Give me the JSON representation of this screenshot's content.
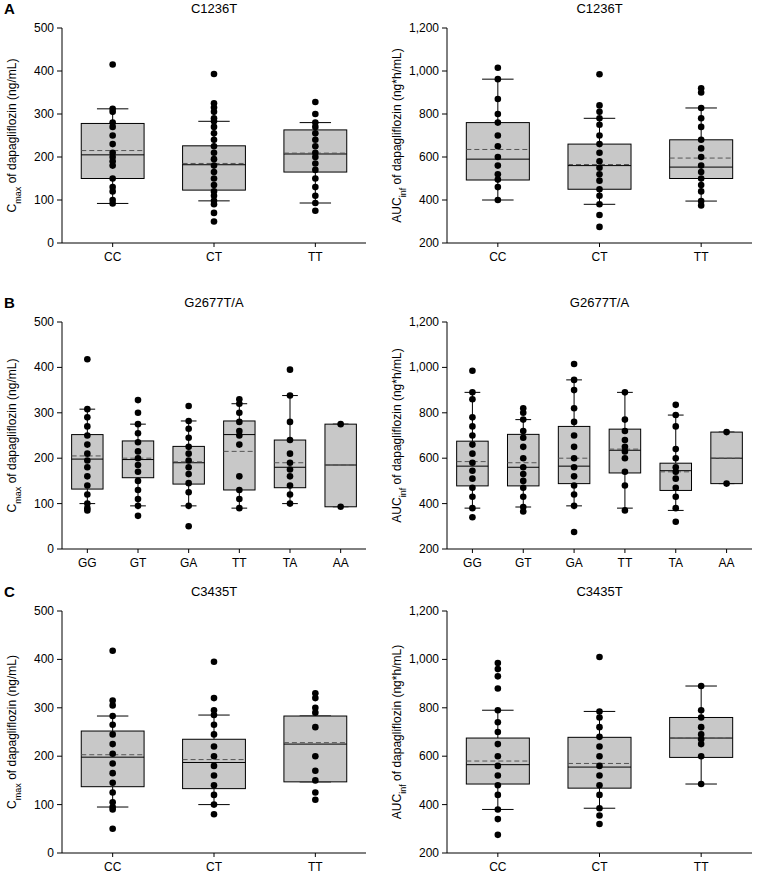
{
  "chart_data": [
    {
      "type": "box",
      "panel": "A",
      "title": "C1236T",
      "y_label": [
        "C",
        "max",
        " of dapagliflozin (ng/mL)"
      ],
      "color": "#c8c8c8",
      "categories": [
        "CC",
        "CT",
        "TT"
      ],
      "ylim": [
        0,
        500
      ],
      "yticks": [
        0,
        100,
        200,
        300,
        400,
        500
      ],
      "boxes": [
        {
          "q1": 150,
          "median": 205,
          "q3": 278,
          "mean": 215,
          "whisker_low": 92,
          "whisker_high": 312,
          "points": [
            415,
            312,
            305,
            280,
            270,
            250,
            230,
            210,
            200,
            190,
            180,
            150,
            130,
            120,
            100,
            92
          ]
        },
        {
          "q1": 123,
          "median": 182,
          "q3": 226,
          "mean": 185,
          "whisker_low": 98,
          "whisker_high": 283,
          "points": [
            393,
            325,
            315,
            305,
            290,
            283,
            270,
            255,
            240,
            225,
            210,
            195,
            180,
            165,
            150,
            135,
            120,
            110,
            98,
            90,
            70,
            50
          ]
        },
        {
          "q1": 165,
          "median": 207,
          "q3": 263,
          "mean": 209,
          "whisker_low": 93,
          "whisker_high": 280,
          "points": [
            328,
            300,
            280,
            270,
            255,
            240,
            225,
            210,
            200,
            185,
            170,
            150,
            130,
            110,
            93,
            75
          ]
        }
      ]
    },
    {
      "type": "box",
      "title": "C1236T",
      "y_label": [
        "AUC",
        "inf",
        " of dapagliflozin (ng*h/mL)"
      ],
      "color": "#c8c8c8",
      "categories": [
        "CC",
        "CT",
        "TT"
      ],
      "ylim": [
        200,
        1200
      ],
      "yticks": [
        200,
        400,
        600,
        800,
        {
          "value": 1000,
          "label": "1,000"
        },
        {
          "value": 1200,
          "label": "1,200"
        }
      ],
      "boxes": [
        {
          "q1": 493,
          "median": 590,
          "q3": 760,
          "mean": 635,
          "whisker_low": 400,
          "whisker_high": 962,
          "points": [
            1015,
            962,
            870,
            800,
            760,
            700,
            650,
            600,
            560,
            520,
            495,
            460,
            400
          ]
        },
        {
          "q1": 450,
          "median": 560,
          "q3": 660,
          "mean": 565,
          "whisker_low": 380,
          "whisker_high": 780,
          "points": [
            985,
            840,
            810,
            780,
            750,
            700,
            660,
            620,
            580,
            550,
            520,
            490,
            450,
            420,
            380,
            330,
            275
          ]
        },
        {
          "q1": 500,
          "median": 553,
          "q3": 680,
          "mean": 595,
          "whisker_low": 395,
          "whisker_high": 828,
          "points": [
            920,
            900,
            828,
            780,
            740,
            680,
            640,
            600,
            560,
            530,
            500,
            470,
            440,
            395,
            375
          ]
        }
      ]
    },
    {
      "type": "box",
      "panel": "B",
      "title": "G2677T/A",
      "y_label": [
        "C",
        "max",
        " of dapagliflozin (ng/mL)"
      ],
      "color": "#c8c8c8",
      "categories": [
        "GG",
        "GT",
        "GA",
        "TT",
        "TA",
        "AA"
      ],
      "ylim": [
        0,
        500
      ],
      "yticks": [
        0,
        100,
        200,
        300,
        400,
        500
      ],
      "boxes": [
        {
          "q1": 132,
          "median": 198,
          "q3": 252,
          "mean": 205,
          "whisker_low": 100,
          "whisker_high": 308,
          "points": [
            418,
            308,
            290,
            270,
            250,
            230,
            210,
            195,
            180,
            160,
            140,
            120,
            100,
            90,
            85
          ]
        },
        {
          "q1": 157,
          "median": 197,
          "q3": 238,
          "mean": 200,
          "whisker_low": 95,
          "whisker_high": 275,
          "points": [
            328,
            300,
            275,
            255,
            235,
            215,
            200,
            185,
            170,
            150,
            130,
            110,
            95,
            73
          ]
        },
        {
          "q1": 143,
          "median": 190,
          "q3": 226,
          "mean": 192,
          "whisker_low": 95,
          "whisker_high": 282,
          "points": [
            315,
            282,
            265,
            245,
            225,
            210,
            195,
            180,
            165,
            145,
            125,
            95,
            50
          ]
        },
        {
          "q1": 130,
          "median": 252,
          "q3": 282,
          "mean": 215,
          "whisker_low": 90,
          "whisker_high": 320,
          "points": [
            330,
            320,
            300,
            280,
            260,
            250,
            230,
            160,
            130,
            110,
            90
          ]
        },
        {
          "q1": 135,
          "median": 180,
          "q3": 240,
          "mean": 190,
          "whisker_low": 100,
          "whisker_high": 338,
          "points": [
            395,
            338,
            280,
            240,
            210,
            190,
            175,
            160,
            140,
            120,
            100
          ]
        },
        {
          "q1": 93,
          "median": 185,
          "q3": 275,
          "mean": 185,
          "whisker_low": 93,
          "whisker_high": 275,
          "points": [
            275,
            93
          ]
        }
      ]
    },
    {
      "type": "box",
      "title": "G2677T/A",
      "y_label": [
        "AUC",
        "inf",
        " of dapagliflozin (ng*h/mL)"
      ],
      "color": "#c8c8c8",
      "categories": [
        "GG",
        "GT",
        "GA",
        "TT",
        "TA",
        "AA"
      ],
      "ylim": [
        200,
        1200
      ],
      "yticks": [
        200,
        400,
        600,
        800,
        {
          "value": 1000,
          "label": "1,000"
        },
        {
          "value": 1200,
          "label": "1,200"
        }
      ],
      "boxes": [
        {
          "q1": 478,
          "median": 565,
          "q3": 675,
          "mean": 585,
          "whisker_low": 380,
          "whisker_high": 890,
          "points": [
            985,
            890,
            860,
            780,
            740,
            700,
            660,
            620,
            580,
            545,
            510,
            470,
            430,
            380,
            340
          ]
        },
        {
          "q1": 478,
          "median": 560,
          "q3": 705,
          "mean": 580,
          "whisker_low": 385,
          "whisker_high": 770,
          "points": [
            820,
            800,
            770,
            720,
            690,
            650,
            600,
            560,
            530,
            500,
            470,
            430,
            385,
            365
          ]
        },
        {
          "q1": 488,
          "median": 565,
          "q3": 740,
          "mean": 600,
          "whisker_low": 390,
          "whisker_high": 945,
          "points": [
            1015,
            945,
            900,
            820,
            760,
            700,
            650,
            600,
            560,
            520,
            480,
            440,
            390,
            275
          ]
        },
        {
          "q1": 535,
          "median": 635,
          "q3": 728,
          "mean": 640,
          "whisker_low": 380,
          "whisker_high": 890,
          "points": [
            890,
            770,
            720,
            680,
            650,
            630,
            600,
            540,
            480,
            370
          ]
        },
        {
          "q1": 458,
          "median": 545,
          "q3": 578,
          "mean": 540,
          "whisker_low": 370,
          "whisker_high": 790,
          "points": [
            835,
            790,
            740,
            640,
            600,
            560,
            540,
            510,
            470,
            430,
            380,
            320
          ]
        },
        {
          "q1": 488,
          "median": 600,
          "q3": 715,
          "mean": 600,
          "whisker_low": 488,
          "whisker_high": 715,
          "points": [
            715,
            488
          ]
        }
      ]
    },
    {
      "type": "box",
      "panel": "C",
      "title": "C3435T",
      "y_label": [
        "C",
        "max",
        " of dapagliflozin (ng/mL)"
      ],
      "color": "#c8c8c8",
      "categories": [
        "CC",
        "CT",
        "TT"
      ],
      "ylim": [
        0,
        500
      ],
      "yticks": [
        0,
        100,
        200,
        300,
        400,
        500
      ],
      "boxes": [
        {
          "q1": 137,
          "median": 198,
          "q3": 252,
          "mean": 203,
          "whisker_low": 95,
          "whisker_high": 283,
          "points": [
            418,
            315,
            305,
            283,
            265,
            245,
            225,
            205,
            185,
            165,
            145,
            125,
            105,
            95,
            90,
            50
          ]
        },
        {
          "q1": 133,
          "median": 187,
          "q3": 235,
          "mean": 193,
          "whisker_low": 100,
          "whisker_high": 285,
          "points": [
            395,
            320,
            295,
            285,
            265,
            245,
            220,
            200,
            180,
            160,
            140,
            120,
            100,
            80
          ]
        },
        {
          "q1": 147,
          "median": 225,
          "q3": 283,
          "mean": 228,
          "whisker_low": 147,
          "whisker_high": 283,
          "points": [
            330,
            320,
            300,
            290,
            260,
            200,
            170,
            150,
            125,
            110
          ]
        }
      ]
    },
    {
      "type": "box",
      "title": "C3435T",
      "y_label": [
        "AUC",
        "inf",
        " of dapagliflozin (ng*h/mL)"
      ],
      "color": "#c8c8c8",
      "categories": [
        "CC",
        "CT",
        "TT"
      ],
      "ylim": [
        200,
        1200
      ],
      "yticks": [
        200,
        400,
        600,
        800,
        {
          "value": 1000,
          "label": "1,000"
        },
        {
          "value": 1200,
          "label": "1,200"
        }
      ],
      "boxes": [
        {
          "q1": 485,
          "median": 565,
          "q3": 675,
          "mean": 580,
          "whisker_low": 380,
          "whisker_high": 790,
          "points": [
            985,
            960,
            930,
            880,
            790,
            740,
            700,
            650,
            600,
            560,
            520,
            480,
            440,
            380,
            340,
            275
          ]
        },
        {
          "q1": 468,
          "median": 555,
          "q3": 678,
          "mean": 570,
          "whisker_low": 385,
          "whisker_high": 785,
          "points": [
            1010,
            785,
            760,
            720,
            680,
            640,
            600,
            560,
            520,
            480,
            440,
            385,
            355,
            320
          ]
        },
        {
          "q1": 595,
          "median": 675,
          "q3": 760,
          "mean": 675,
          "whisker_low": 485,
          "whisker_high": 890,
          "points": [
            890,
            790,
            760,
            720,
            690,
            670,
            650,
            600,
            485
          ]
        }
      ]
    }
  ]
}
